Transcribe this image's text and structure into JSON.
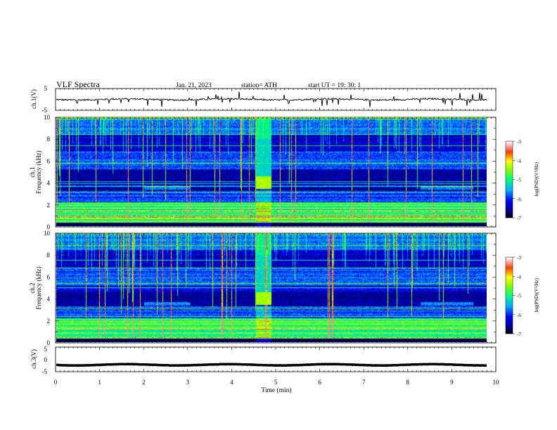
{
  "header": {
    "title": "VLF  Spectra",
    "date": "Jan. 21, 2023",
    "station": "station= ATH",
    "start": "start  UT  =    19: 30: 1"
  },
  "chart_data": [
    {
      "id": "ch1-voltage",
      "type": "line",
      "ylabel": "ch.1(V)",
      "ylim": [
        -5,
        5
      ],
      "yticks": [
        "5",
        "-5"
      ],
      "xlim": [
        0,
        10
      ],
      "trace_max_x": 9.8,
      "series": [
        {
          "level": 0,
          "noise": 0.35
        }
      ]
    },
    {
      "id": "ch1-spectrogram",
      "type": "heatmap",
      "ylabel_top": "ch.1",
      "ylabel": "Frequency  (kHz)",
      "ylim": [
        0,
        10
      ],
      "yticks": [
        "0",
        "2",
        "4",
        "6",
        "8",
        "10"
      ],
      "xlim": [
        0,
        9.8
      ],
      "colorbar": {
        "label": "log(PSD)(V²/Hz)",
        "range": [
          -7,
          -3
        ],
        "ticks": [
          "-3",
          "-4",
          "-5",
          "-6",
          "-7"
        ]
      },
      "features": {
        "burst_x": [
          4.55,
          4.9
        ],
        "burst_f": [
          3.4,
          4.6
        ],
        "quiet_segments": [
          [
            2.0,
            3.05
          ],
          [
            8.3,
            9.5
          ]
        ]
      }
    },
    {
      "id": "ch2-spectrogram",
      "type": "heatmap",
      "ylabel_top": "ch.2",
      "ylabel": "Frequency  (kHz)",
      "ylim": [
        0,
        10
      ],
      "yticks": [
        "0",
        "2",
        "4",
        "6",
        "8",
        "10"
      ],
      "xlim": [
        0,
        9.8
      ],
      "colorbar": {
        "label": "log(PSD)(V²/Hz)",
        "range": [
          -7,
          -3
        ],
        "ticks": [
          "-3",
          "-4",
          "-5",
          "-6",
          "-7"
        ]
      },
      "features": {
        "burst_x": [
          4.55,
          4.9
        ],
        "burst_f": [
          3.4,
          4.6
        ],
        "quiet_segments": [
          [
            2.0,
            3.05
          ],
          [
            8.3,
            9.5
          ]
        ]
      }
    },
    {
      "id": "ch3-voltage",
      "type": "line",
      "ylabel": "ch.3(V)",
      "ylim": [
        -5,
        5
      ],
      "yticks": [
        "5",
        "0",
        "-5"
      ],
      "xlim": [
        0,
        10
      ],
      "trace_max_x": 9.8,
      "series": [
        {
          "level": -2.2,
          "noise": 0.05
        }
      ]
    }
  ],
  "xaxis": {
    "label": "Time  (min)",
    "range": [
      0,
      10
    ],
    "ticks": [
      "0",
      "1",
      "2",
      "3",
      "4",
      "5",
      "6",
      "7",
      "8",
      "9",
      "10"
    ]
  }
}
